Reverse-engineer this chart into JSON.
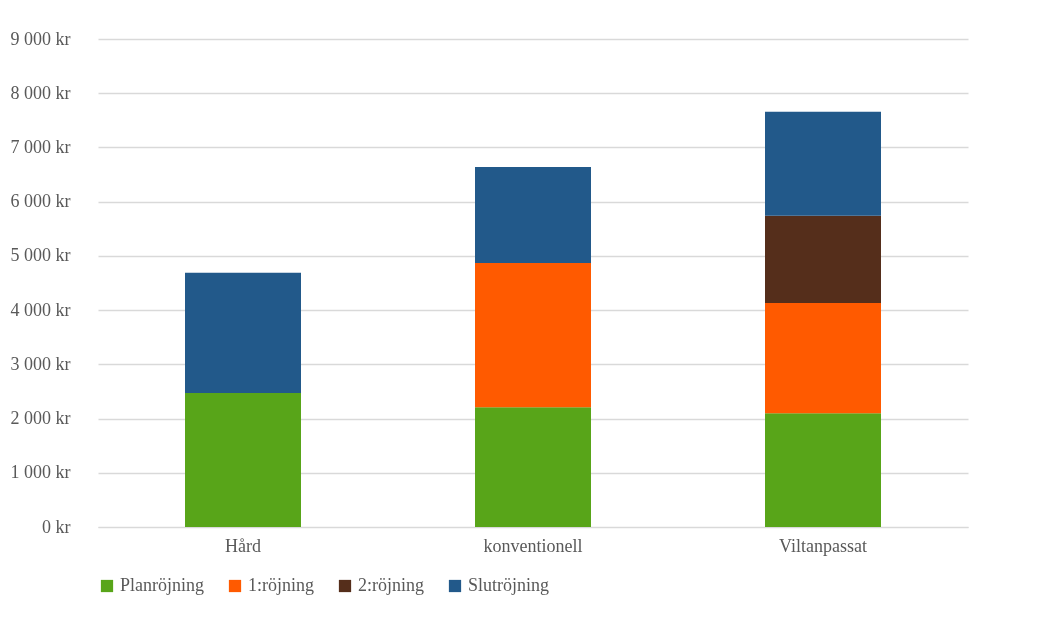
{
  "chart_data": {
    "type": "bar",
    "stacked": true,
    "categories": [
      "Hård",
      "konventionell",
      "Viltanpassat"
    ],
    "series": [
      {
        "name": "Planröjning",
        "color": "#58a519",
        "values": [
          2470,
          2210,
          2100
        ]
      },
      {
        "name": "1:röjning",
        "color": "#ff5a00",
        "values": [
          null,
          2660,
          2030
        ]
      },
      {
        "name": "2:röjning",
        "color": "#552e1b",
        "values": [
          null,
          null,
          1610
        ]
      },
      {
        "name": "Slutröjning",
        "color": "#22598a",
        "values": [
          2220,
          1770,
          1920
        ]
      }
    ],
    "ylim": [
      0,
      9000
    ],
    "yticks": [
      {
        "value": 0,
        "label": "0 kr"
      },
      {
        "value": 1000,
        "label": "1 000 kr"
      },
      {
        "value": 2000,
        "label": "2 000 kr"
      },
      {
        "value": 3000,
        "label": "3 000 kr"
      },
      {
        "value": 4000,
        "label": "4 000 kr"
      },
      {
        "value": 5000,
        "label": "5 000 kr"
      },
      {
        "value": 6000,
        "label": "6 000 kr"
      },
      {
        "value": 7000,
        "label": "7 000 kr"
      },
      {
        "value": 8000,
        "label": "8 000 kr"
      },
      {
        "value": 9000,
        "label": "9 000 kr"
      }
    ],
    "grid": "y",
    "legend": "bottom"
  }
}
